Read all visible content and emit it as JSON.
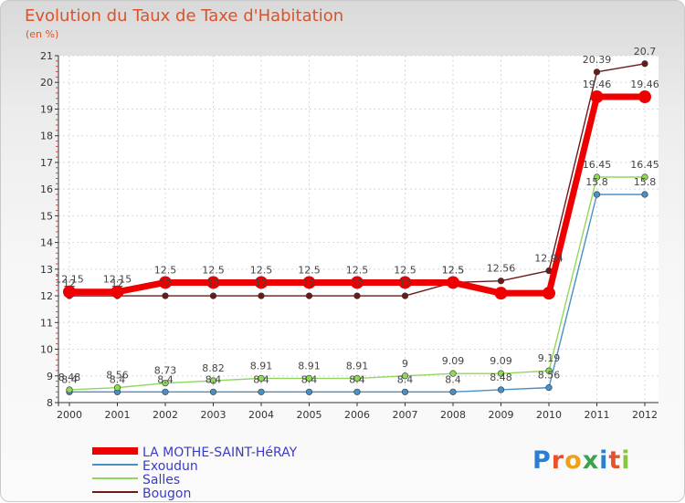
{
  "chart_data": {
    "type": "line",
    "title": "Evolution du Taux de Taxe d'Habitation",
    "ylabel": "(en %)",
    "xlabel": "",
    "ylim": [
      8,
      21
    ],
    "yticks": [
      "8",
      "9",
      "10",
      "11",
      "12",
      "13",
      "14",
      "15",
      "16",
      "17",
      "18",
      "19",
      "20",
      "21"
    ],
    "categories": [
      "2000",
      "2001",
      "2002",
      "2003",
      "2004",
      "2005",
      "2006",
      "2007",
      "2008",
      "2009",
      "2010",
      "2011",
      "2012"
    ],
    "series": [
      {
        "name": "LA MOTHE-SAINT-HéRAY",
        "color": "#ee0000",
        "emphasis": true,
        "values": [
          12.15,
          12.15,
          12.5,
          12.5,
          12.5,
          12.5,
          12.5,
          12.5,
          12.5,
          12.1,
          12.1,
          19.46,
          19.46
        ],
        "labels": [
          "12.15",
          "12.15",
          "12.5",
          "12.5",
          "12.5",
          "12.5",
          "12.5",
          "12.5",
          "12.5",
          "",
          "",
          "19.46",
          "19.46"
        ]
      },
      {
        "name": "Exoudun",
        "color": "#4a90c8",
        "values": [
          8.4,
          8.4,
          8.4,
          8.4,
          8.4,
          8.4,
          8.4,
          8.4,
          8.4,
          8.48,
          8.56,
          15.8,
          15.8
        ],
        "labels": [
          "8.4",
          "8.4",
          "8.4",
          "8.4",
          "8.4",
          "8.4",
          "8.4",
          "8.4",
          "8.4",
          "8.48",
          "8.56",
          "15.8",
          "15.8"
        ]
      },
      {
        "name": "Salles",
        "color": "#8fd85a",
        "values": [
          8.48,
          8.56,
          8.73,
          8.82,
          8.91,
          8.91,
          8.91,
          9.0,
          9.09,
          9.09,
          9.19,
          16.45,
          16.45
        ],
        "labels": [
          "8.48",
          "8.56",
          "8.73",
          "8.82",
          "8.91",
          "8.91",
          "8.91",
          "9",
          "9.09",
          "9.09",
          "9.19",
          "16.45",
          "16.45"
        ]
      },
      {
        "name": "Bougon",
        "color": "#6b1a1a",
        "values": [
          12,
          12,
          12,
          12,
          12,
          12,
          12,
          12,
          12.5,
          12.56,
          12.94,
          20.39,
          20.7
        ],
        "labels": [
          "12",
          "12",
          "12",
          "12",
          "12",
          "12",
          "12",
          "12",
          "12.5",
          "12.56",
          "12.94",
          "20.39",
          "20.7"
        ]
      }
    ],
    "legend_position": "bottom-left"
  }
}
